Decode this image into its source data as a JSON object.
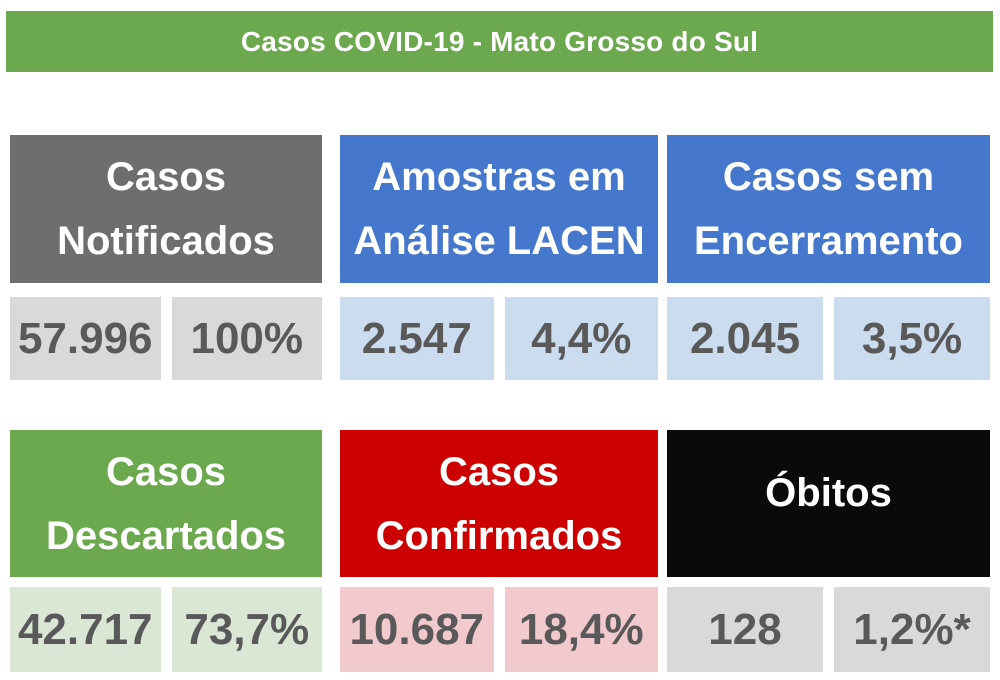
{
  "header": {
    "title": "Casos COVID-19 - Mato Grosso do Sul",
    "bg": "#6CA84E",
    "text_color": "#FFFFFF"
  },
  "colors": {
    "page_bg": "#FFFFFF",
    "value_text": "#595959",
    "gray_card": "#6E6E6E",
    "blue_card": "#4577CD",
    "green_card": "#6CA84E",
    "red_card": "#CC0000",
    "black_card": "#0A0A0A",
    "light_gray": "#D9D9D9",
    "light_blue": "#CBDCEF",
    "light_green": "#DAE7D5",
    "light_pink": "#F2C9CD"
  },
  "cards": [
    {
      "id": "casos-notificados",
      "title_line1": "Casos",
      "title_line2": "Notificados",
      "value": "57.996",
      "percent": "100%",
      "header_bg": "#6E6E6E",
      "value_bg": "#D9D9D9"
    },
    {
      "id": "amostras-em-analise-lacen",
      "title_line1": "Amostras em",
      "title_line2": "Análise LACEN",
      "value": "2.547",
      "percent": "4,4%",
      "header_bg": "#4577CD",
      "value_bg": "#CBDCEF"
    },
    {
      "id": "casos-sem-encerramento",
      "title_line1": "Casos sem",
      "title_line2": "Encerramento",
      "value": "2.045",
      "percent": "3,5%",
      "header_bg": "#4577CD",
      "value_bg": "#CBDCEF"
    },
    {
      "id": "casos-descartados",
      "title_line1": "Casos",
      "title_line2": "Descartados",
      "value": "42.717",
      "percent": "73,7%",
      "header_bg": "#6CA84E",
      "value_bg": "#DAE7D5"
    },
    {
      "id": "casos-confirmados",
      "title_line1": "Casos",
      "title_line2": "Confirmados",
      "value": "10.687",
      "percent": "18,4%",
      "header_bg": "#CC0000",
      "value_bg": "#F2C9CD"
    },
    {
      "id": "obitos",
      "title_line1": "Óbitos",
      "title_line2": "",
      "value": "128",
      "percent": "1,2%*",
      "header_bg": "#0A0A0A",
      "value_bg": "#D9D9D9"
    }
  ],
  "chart_data": {
    "type": "table",
    "title": "Casos COVID-19 - Mato Grosso do Sul",
    "categories": [
      "Casos Notificados",
      "Amostras em Análise LACEN",
      "Casos sem Encerramento",
      "Casos Descartados",
      "Casos Confirmados",
      "Óbitos"
    ],
    "series": [
      {
        "name": "count",
        "values": [
          57996,
          2547,
          2045,
          42717,
          10687,
          128
        ]
      },
      {
        "name": "percent",
        "values": [
          "100%",
          "4,4%",
          "3,5%",
          "73,7%",
          "18,4%",
          "1,2%*"
        ]
      }
    ]
  }
}
